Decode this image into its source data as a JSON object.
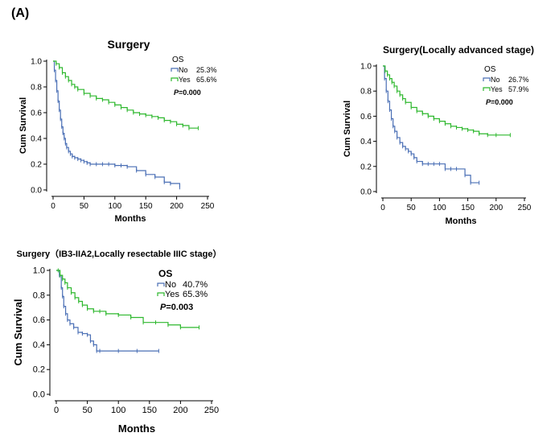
{
  "figure": {
    "panel_label": "(A)"
  },
  "chart_data": [
    {
      "type": "line",
      "subtype": "kaplan-meier",
      "title": "Surgery",
      "xlabel": "Months",
      "ylabel": "Cum Survival",
      "xlim": [
        0,
        250
      ],
      "ylim": [
        0,
        1.0
      ],
      "xticks": [
        0,
        50,
        100,
        150,
        200,
        250
      ],
      "yticks": [
        0.0,
        0.2,
        0.4,
        0.6,
        0.8,
        1.0
      ],
      "xtick_labels": [
        "0",
        "50",
        "100",
        "150",
        "200",
        "250"
      ],
      "ytick_labels": [
        "0.0",
        "0.2",
        "0.4",
        "0.6",
        "0.8",
        "1.0"
      ],
      "legend": {
        "title": "OS",
        "position": "top-right",
        "pvalue_label": "P",
        "pvalue_text": "=0.000"
      },
      "series": [
        {
          "name": "No",
          "pct": "25.3%",
          "color": "#4a6fb5",
          "x": [
            0,
            2,
            4,
            6,
            8,
            10,
            12,
            14,
            16,
            18,
            20,
            22,
            25,
            28,
            31,
            35,
            40,
            45,
            50,
            55,
            60,
            70,
            80,
            90,
            100,
            110,
            120,
            135,
            150,
            165,
            180,
            190,
            205
          ],
          "y": [
            1.0,
            0.93,
            0.85,
            0.77,
            0.69,
            0.62,
            0.55,
            0.49,
            0.44,
            0.4,
            0.36,
            0.33,
            0.3,
            0.28,
            0.26,
            0.25,
            0.24,
            0.23,
            0.22,
            0.21,
            0.2,
            0.2,
            0.2,
            0.2,
            0.19,
            0.19,
            0.18,
            0.15,
            0.12,
            0.1,
            0.06,
            0.05,
            0.02
          ]
        },
        {
          "name": "Yes",
          "pct": "65.6%",
          "color": "#2eb82e",
          "x": [
            0,
            5,
            10,
            15,
            20,
            25,
            30,
            35,
            40,
            50,
            60,
            70,
            80,
            90,
            100,
            110,
            120,
            130,
            140,
            150,
            160,
            170,
            180,
            190,
            200,
            210,
            220,
            235
          ],
          "y": [
            1.0,
            0.98,
            0.95,
            0.91,
            0.88,
            0.85,
            0.82,
            0.8,
            0.78,
            0.75,
            0.73,
            0.71,
            0.7,
            0.68,
            0.66,
            0.64,
            0.62,
            0.6,
            0.59,
            0.58,
            0.57,
            0.56,
            0.54,
            0.53,
            0.51,
            0.5,
            0.48,
            0.48
          ]
        }
      ]
    },
    {
      "type": "line",
      "subtype": "kaplan-meier",
      "title": "Surgery(Locally advanced stage)",
      "xlabel": "Months",
      "ylabel": "Cum Survival",
      "xlim": [
        0,
        250
      ],
      "ylim": [
        0,
        1.0
      ],
      "xticks": [
        0,
        50,
        100,
        150,
        200,
        250
      ],
      "yticks": [
        0.0,
        0.2,
        0.4,
        0.6,
        0.8,
        1.0
      ],
      "xtick_labels": [
        "0",
        "50",
        "100",
        "150",
        "200",
        "250"
      ],
      "ytick_labels": [
        "0.0",
        "0.2",
        "0.4",
        "0.6",
        "0.8",
        "1.0"
      ],
      "legend": {
        "title": "OS",
        "position": "top-right",
        "pvalue_label": "P",
        "pvalue_text": "=0.000"
      },
      "series": [
        {
          "name": "No",
          "pct": "26.7%",
          "color": "#4a6fb5",
          "x": [
            0,
            3,
            6,
            9,
            12,
            15,
            18,
            21,
            25,
            30,
            35,
            40,
            45,
            50,
            55,
            60,
            70,
            80,
            90,
            100,
            110,
            120,
            130,
            145,
            155,
            170
          ],
          "y": [
            1.0,
            0.9,
            0.8,
            0.72,
            0.65,
            0.58,
            0.52,
            0.48,
            0.43,
            0.39,
            0.36,
            0.34,
            0.32,
            0.3,
            0.27,
            0.24,
            0.22,
            0.22,
            0.22,
            0.22,
            0.18,
            0.18,
            0.18,
            0.13,
            0.07,
            0.07
          ]
        },
        {
          "name": "Yes",
          "pct": "57.9%",
          "color": "#2eb82e",
          "x": [
            0,
            4,
            8,
            12,
            16,
            20,
            25,
            30,
            35,
            40,
            50,
            60,
            70,
            80,
            90,
            100,
            110,
            120,
            130,
            140,
            150,
            160,
            170,
            185,
            200,
            225
          ],
          "y": [
            1.0,
            0.96,
            0.93,
            0.9,
            0.87,
            0.84,
            0.8,
            0.77,
            0.74,
            0.71,
            0.67,
            0.64,
            0.62,
            0.6,
            0.58,
            0.56,
            0.54,
            0.52,
            0.51,
            0.5,
            0.49,
            0.48,
            0.46,
            0.45,
            0.45,
            0.45
          ]
        }
      ]
    },
    {
      "type": "line",
      "subtype": "kaplan-meier",
      "title": "Surgery（IB3-IIA2,Locally resectable IIIC stage）",
      "xlabel": "Months",
      "ylabel": "Cum Survival",
      "xlim": [
        0,
        250
      ],
      "ylim": [
        0,
        1.0
      ],
      "xticks": [
        0,
        50,
        100,
        150,
        200,
        250
      ],
      "yticks": [
        0.0,
        0.2,
        0.4,
        0.6,
        0.8,
        1.0
      ],
      "xtick_labels": [
        "0",
        "50",
        "100",
        "150",
        "200",
        "250"
      ],
      "ytick_labels": [
        "0.0",
        "0.2",
        "0.4",
        "0.6",
        "0.8",
        "1.0"
      ],
      "legend": {
        "title": "OS",
        "position": "top-right",
        "pvalue_label": "P",
        "pvalue_text": "=0.003"
      },
      "series": [
        {
          "name": "No",
          "pct": "40.7%",
          "color": "#4a6fb5",
          "x": [
            0,
            5,
            8,
            10,
            12,
            15,
            18,
            22,
            28,
            35,
            42,
            50,
            55,
            60,
            65,
            70,
            100,
            130,
            165
          ],
          "y": [
            1.0,
            0.96,
            0.86,
            0.79,
            0.71,
            0.65,
            0.6,
            0.57,
            0.54,
            0.5,
            0.49,
            0.48,
            0.43,
            0.4,
            0.35,
            0.35,
            0.35,
            0.35,
            0.35
          ]
        },
        {
          "name": "Yes",
          "pct": "65.3%",
          "color": "#2eb82e",
          "x": [
            0,
            3,
            6,
            10,
            14,
            18,
            24,
            30,
            36,
            42,
            50,
            60,
            70,
            80,
            100,
            120,
            140,
            160,
            180,
            200,
            230
          ],
          "y": [
            1.0,
            1.0,
            0.96,
            0.93,
            0.9,
            0.86,
            0.82,
            0.78,
            0.75,
            0.72,
            0.69,
            0.67,
            0.67,
            0.65,
            0.64,
            0.62,
            0.58,
            0.58,
            0.56,
            0.54,
            0.54
          ]
        }
      ]
    }
  ]
}
